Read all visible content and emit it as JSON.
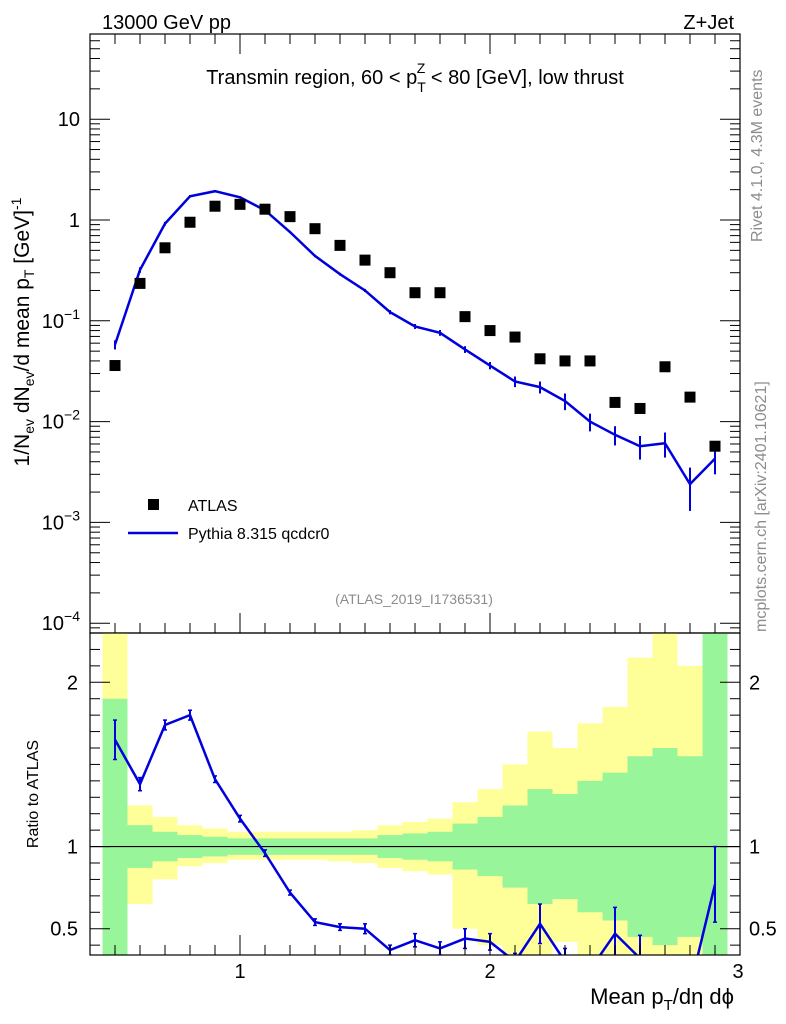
{
  "header": {
    "left": "13000 GeV pp",
    "right": "Z+Jet"
  },
  "side_text": {
    "top": "Rivet 4.1.0,  4.3M events",
    "bottom": "mcplots.cern.ch [arXiv:2401.10621]"
  },
  "colors": {
    "mc": "#0000dd",
    "band_inner": "#99f599",
    "band_outer": "#ffff99",
    "data": "#000000"
  },
  "chart_data": [
    {
      "type": "scatter",
      "title": "Transmin region, 60 < p_T^Z < 80 [GeV], low thrust",
      "title_parts": {
        "a": "Transmin region, 60 < p",
        "sub": "T",
        "sup": "Z",
        "b": " < 80 [GeV], low thrust"
      },
      "ylabel": "1/N_ev dN_ev/d mean p_T [GeV]^-1",
      "ylabel_parts": {
        "p1": "1/N",
        "s1": "ev",
        "p2": " dN",
        "s2": "ev",
        "p3": "/d mean p",
        "s3": "T",
        "p4": " [GeV]",
        "sup": "-1"
      },
      "y_scale": "log",
      "ylim": [
        8e-05,
        70
      ],
      "xlim": [
        0.4,
        3.0
      ],
      "y_ticks": [
        {
          "v": 10,
          "text": "10"
        },
        {
          "v": 1,
          "text": "1"
        },
        {
          "v": 0.1,
          "base": "10",
          "exp": "−1"
        },
        {
          "v": 0.01,
          "base": "10",
          "exp": "−2"
        },
        {
          "v": 0.001,
          "base": "10",
          "exp": "−3"
        },
        {
          "v": 0.0001,
          "base": "10",
          "exp": "−4"
        }
      ],
      "reference": "(ATLAS_2019_I1736531)",
      "legend": [
        {
          "name": "ATLAS",
          "style": "marker"
        },
        {
          "name": "Pythia 8.315 qcdcr0",
          "style": "line"
        }
      ],
      "x": [
        0.5,
        0.6,
        0.7,
        0.8,
        0.9,
        1.0,
        1.1,
        1.2,
        1.3,
        1.4,
        1.5,
        1.6,
        1.7,
        1.8,
        1.9,
        2.0,
        2.1,
        2.2,
        2.3,
        2.4,
        2.5,
        2.6,
        2.7,
        2.8,
        2.9
      ],
      "series": [
        {
          "name": "ATLAS",
          "values": [
            0.036,
            0.235,
            0.53,
            0.95,
            1.37,
            1.43,
            1.28,
            1.08,
            0.82,
            0.56,
            0.4,
            0.3,
            0.19,
            0.19,
            0.11,
            0.08,
            0.069,
            0.042,
            0.04,
            0.04,
            0.0155,
            0.0135,
            0.035,
            0.0175,
            0.0057
          ]
        },
        {
          "name": "Pythia 8.315 qcdcr0",
          "values": [
            0.058,
            0.32,
            0.92,
            1.72,
            1.93,
            1.68,
            1.25,
            0.76,
            0.44,
            0.29,
            0.2,
            0.122,
            0.088,
            0.076,
            0.052,
            0.036,
            0.025,
            0.022,
            0.016,
            0.01,
            0.0074,
            0.0057,
            0.0061,
            0.0024,
            0.0043
          ],
          "err": [
            0.006,
            0.02,
            0.04,
            0.05,
            0.05,
            0.04,
            0.03,
            0.02,
            0.012,
            0.009,
            0.007,
            0.006,
            0.005,
            0.005,
            0.004,
            0.003,
            0.003,
            0.003,
            0.003,
            0.002,
            0.0016,
            0.0015,
            0.0017,
            0.0011,
            0.0013
          ]
        }
      ]
    },
    {
      "type": "line",
      "ylabel": "Ratio to ATLAS",
      "xlabel": "Mean p_T/dη dϕ",
      "xlabel_parts": {
        "a": "Mean p",
        "sub": "T",
        "b": "/dη dϕ"
      },
      "xlim": [
        0.4,
        3.0
      ],
      "ylim": [
        0.34,
        2.3
      ],
      "x_ticks": [
        {
          "v": 1,
          "text": "1"
        },
        {
          "v": 2,
          "text": "2"
        },
        {
          "v": 3,
          "text": "3"
        }
      ],
      "y_ticks": [
        {
          "v": 0.5,
          "text": "0.5"
        },
        {
          "v": 1,
          "text": "1"
        },
        {
          "v": 2,
          "text": "2"
        }
      ],
      "band_edges": [
        0.45,
        0.55,
        0.65,
        0.75,
        0.85,
        0.95,
        1.05,
        1.15,
        1.25,
        1.35,
        1.45,
        1.55,
        1.65,
        1.75,
        1.85,
        1.95,
        2.05,
        2.15,
        2.25,
        2.35,
        2.45,
        2.55,
        2.65,
        2.75,
        2.85,
        2.95
      ],
      "band_inner": {
        "upper": [
          1.9,
          1.13,
          1.09,
          1.07,
          1.06,
          1.05,
          1.05,
          1.05,
          1.05,
          1.05,
          1.05,
          1.07,
          1.08,
          1.09,
          1.14,
          1.18,
          1.25,
          1.35,
          1.32,
          1.4,
          1.45,
          1.55,
          1.6,
          1.55,
          2.3
        ],
        "lower": [
          0.34,
          0.87,
          0.91,
          0.93,
          0.94,
          0.95,
          0.95,
          0.95,
          0.95,
          0.95,
          0.95,
          0.93,
          0.92,
          0.91,
          0.86,
          0.82,
          0.75,
          0.65,
          0.68,
          0.6,
          0.55,
          0.45,
          0.4,
          0.45,
          0.34
        ]
      },
      "band_outer": {
        "upper": [
          2.3,
          1.25,
          1.18,
          1.13,
          1.11,
          1.09,
          1.09,
          1.09,
          1.09,
          1.09,
          1.1,
          1.13,
          1.15,
          1.17,
          1.27,
          1.35,
          1.5,
          1.7,
          1.6,
          1.75,
          1.85,
          2.15,
          2.3,
          2.1,
          2.3
        ],
        "lower": [
          0.34,
          0.65,
          0.8,
          0.88,
          0.9,
          0.92,
          0.92,
          0.92,
          0.92,
          0.91,
          0.9,
          0.87,
          0.85,
          0.83,
          0.5,
          0.4,
          0.34,
          0.34,
          0.42,
          0.34,
          0.34,
          0.34,
          0.34,
          0.34,
          0.34
        ]
      },
      "series": [
        {
          "name": "Pythia 8.315 qcdcr0",
          "values": [
            1.65,
            1.38,
            1.74,
            1.8,
            1.41,
            1.17,
            0.96,
            0.72,
            0.54,
            0.51,
            0.5,
            0.37,
            0.43,
            0.38,
            0.44,
            0.42,
            0.3,
            0.53,
            0.3,
            0.25,
            0.47,
            0.32,
            0.17,
            0.14,
            0.77
          ],
          "err": [
            0.12,
            0.04,
            0.03,
            0.03,
            0.02,
            0.02,
            0.02,
            0.015,
            0.02,
            0.02,
            0.03,
            0.03,
            0.04,
            0.04,
            0.06,
            0.05,
            0.05,
            0.12,
            0.08,
            0.06,
            0.16,
            0.14,
            0.07,
            0.07,
            0.23
          ]
        }
      ]
    }
  ]
}
